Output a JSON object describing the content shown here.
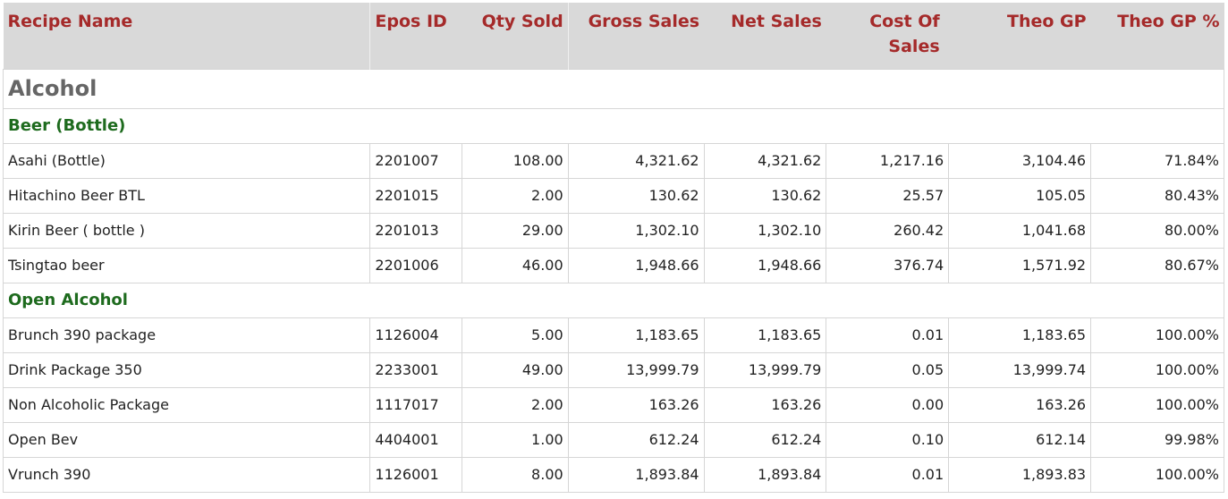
{
  "headers": {
    "recipe_name": "Recipe Name",
    "epos_id": "Epos ID",
    "qty_sold": "Qty Sold",
    "gross_sales": "Gross Sales",
    "net_sales": "Net Sales",
    "cost_of_sales": "Cost Of Sales",
    "theo_gp": "Theo GP",
    "theo_gp_pct": "Theo GP %"
  },
  "category": "Alcohol",
  "groups": [
    {
      "name": "Beer (Bottle)",
      "rows": [
        [
          "Asahi (Bottle)",
          "2201007",
          "108.00",
          "4,321.62",
          "4,321.62",
          "1,217.16",
          "3,104.46",
          "71.84%"
        ],
        [
          "Hitachino Beer BTL",
          "2201015",
          "2.00",
          "130.62",
          "130.62",
          "25.57",
          "105.05",
          "80.43%"
        ],
        [
          "Kirin Beer ( bottle )",
          "2201013",
          "29.00",
          "1,302.10",
          "1,302.10",
          "260.42",
          "1,041.68",
          "80.00%"
        ],
        [
          "Tsingtao beer",
          "2201006",
          "46.00",
          "1,948.66",
          "1,948.66",
          "376.74",
          "1,571.92",
          "80.67%"
        ]
      ]
    },
    {
      "name": "Open Alcohol",
      "rows": [
        [
          "Brunch 390 package",
          "1126004",
          "5.00",
          "1,183.65",
          "1,183.65",
          "0.01",
          "1,183.65",
          "100.00%"
        ],
        [
          "Drink Package 350",
          "2233001",
          "49.00",
          "13,999.79",
          "13,999.79",
          "0.05",
          "13,999.74",
          "100.00%"
        ],
        [
          "Non Alcoholic Package",
          "1117017",
          "2.00",
          "163.26",
          "163.26",
          "0.00",
          "163.26",
          "100.00%"
        ],
        [
          "Open Bev",
          "4404001",
          "1.00",
          "612.24",
          "612.24",
          "0.10",
          "612.14",
          "99.98%"
        ],
        [
          "Vrunch 390",
          "1126001",
          "8.00",
          "1,893.84",
          "1,893.84",
          "0.01",
          "1,893.83",
          "100.00%"
        ]
      ]
    }
  ]
}
